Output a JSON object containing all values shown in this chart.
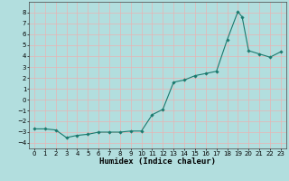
{
  "title": "",
  "xlabel": "Humidex (Indice chaleur)",
  "ylabel": "",
  "background_color": "#b2dede",
  "grid_color": "#e8b4b4",
  "line_color": "#1a7a6e",
  "marker_color": "#1a7a6e",
  "x": [
    0,
    1,
    2,
    3,
    4,
    5,
    6,
    7,
    8,
    9,
    10,
    11,
    12,
    13,
    14,
    15,
    16,
    17,
    18,
    19,
    19.4,
    20,
    21,
    22,
    23
  ],
  "y": [
    -2.7,
    -2.7,
    -2.8,
    -3.5,
    -3.3,
    -3.2,
    -3.0,
    -3.0,
    -3.0,
    -2.9,
    -2.9,
    -1.4,
    -0.9,
    1.6,
    1.8,
    2.2,
    2.4,
    2.6,
    5.5,
    8.1,
    7.6,
    4.5,
    4.2,
    3.9,
    4.4
  ],
  "ylim": [
    -4.5,
    9.0
  ],
  "xlim": [
    -0.5,
    23.5
  ],
  "yticks": [
    -4,
    -3,
    -2,
    -1,
    0,
    1,
    2,
    3,
    4,
    5,
    6,
    7,
    8
  ],
  "xticks": [
    0,
    1,
    2,
    3,
    4,
    5,
    6,
    7,
    8,
    9,
    10,
    11,
    12,
    13,
    14,
    15,
    16,
    17,
    18,
    19,
    20,
    21,
    22,
    23
  ],
  "tick_fontsize": 5.0,
  "label_fontsize": 6.5
}
